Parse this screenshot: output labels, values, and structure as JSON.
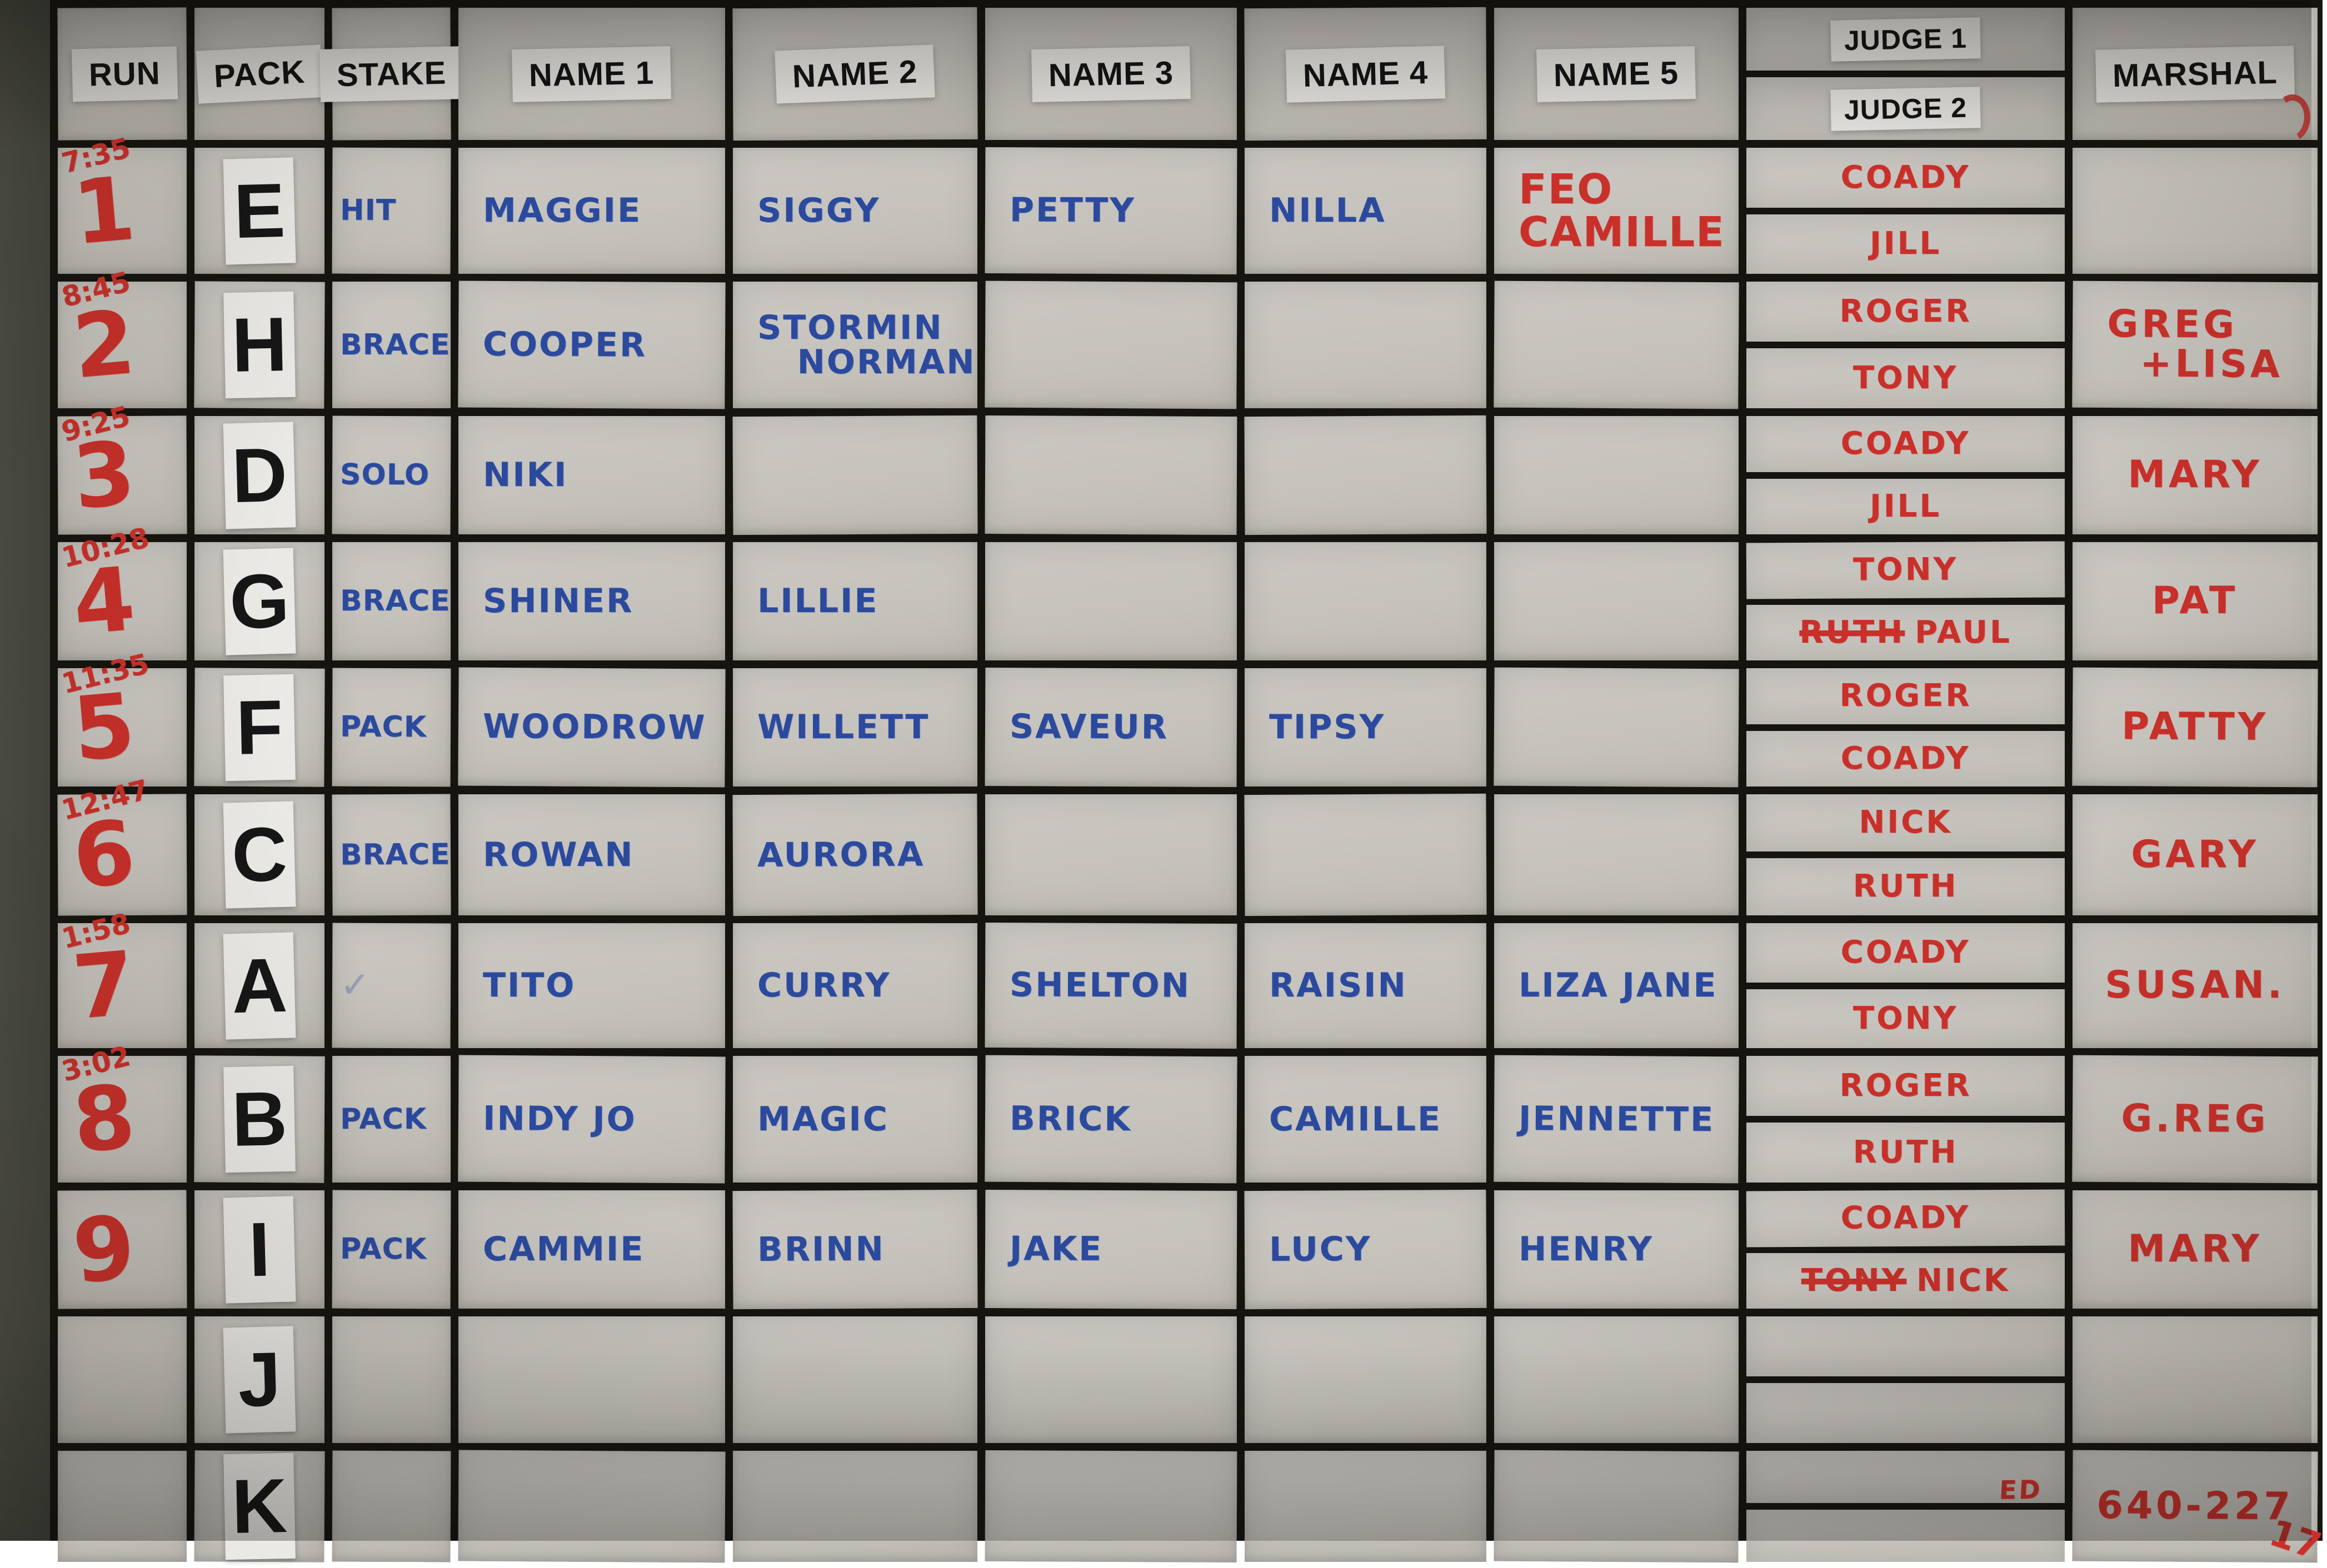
{
  "ink": {
    "blue": "#2b4a9e",
    "red": "#c9302a"
  },
  "header": {
    "run": "RUN",
    "pack": "PACK",
    "stake": "STAKE",
    "name1": "NAME 1",
    "name2": "NAME 2",
    "name3": "NAME 3",
    "name4": "NAME 4",
    "name5": "NAME 5",
    "judge1": "JUDGE 1",
    "judge2": "JUDGE 2",
    "marshal": "MARSHAL"
  },
  "rows": [
    {
      "time": "7:35",
      "run": "1",
      "pack": "E",
      "stake": {
        "text": "HIT"
      },
      "names": [
        {
          "text": "MAGGIE"
        },
        {
          "text": "SIGGY"
        },
        {
          "text": "PETTY"
        },
        {
          "text": "NILLA"
        },
        {
          "text": "FEO\nCAMILLE",
          "color": "red",
          "big": true
        }
      ],
      "judge1": {
        "text": "COADY"
      },
      "judge2": {
        "text": "JILL"
      },
      "marshal": {
        "text": ""
      }
    },
    {
      "time": "8:45",
      "run": "2",
      "pack": "H",
      "stake": {
        "text": "BRACE"
      },
      "names": [
        {
          "text": "COOPER"
        },
        {
          "text": "STORMIN\n   NORMAN"
        },
        {
          "text": ""
        },
        {
          "text": ""
        },
        {
          "text": ""
        }
      ],
      "judge1": {
        "text": "ROGER"
      },
      "judge2": {
        "text": "TONY"
      },
      "marshal": {
        "text": "GREG\n  +LISA"
      }
    },
    {
      "time": "9:25",
      "run": "3",
      "pack": "D",
      "stake": {
        "text": "SOLO"
      },
      "names": [
        {
          "text": "NIKI"
        },
        {
          "text": ""
        },
        {
          "text": ""
        },
        {
          "text": ""
        },
        {
          "text": ""
        }
      ],
      "judge1": {
        "text": "COADY"
      },
      "judge2": {
        "text": "JILL"
      },
      "marshal": {
        "text": "MARY"
      }
    },
    {
      "time": "10:28",
      "run": "4",
      "pack": "G",
      "stake": {
        "text": "BRACE"
      },
      "names": [
        {
          "text": "SHINER"
        },
        {
          "text": "LILLIE"
        },
        {
          "text": ""
        },
        {
          "text": ""
        },
        {
          "text": ""
        }
      ],
      "judge1": {
        "text": "TONY"
      },
      "judge2": {
        "struck_text": "RUTH",
        "text": "PAUL"
      },
      "marshal": {
        "text": "PAT"
      }
    },
    {
      "time": "11:35",
      "run": "5",
      "pack": "F",
      "stake": {
        "text": "PACK"
      },
      "names": [
        {
          "text": "WOODROW"
        },
        {
          "text": "WILLETT"
        },
        {
          "text": "SAVEUR"
        },
        {
          "text": "TIPSY"
        },
        {
          "text": ""
        }
      ],
      "judge1": {
        "text": "ROGER"
      },
      "judge2": {
        "text": "COADY"
      },
      "marshal": {
        "text": "PATTY"
      }
    },
    {
      "time": "12:47",
      "run": "6",
      "pack": "C",
      "stake": {
        "text": "BRACE"
      },
      "names": [
        {
          "text": "ROWAN"
        },
        {
          "text": "AURORA"
        },
        {
          "text": ""
        },
        {
          "text": ""
        },
        {
          "text": ""
        }
      ],
      "judge1": {
        "text": "NICK"
      },
      "judge2": {
        "text": "RUTH"
      },
      "marshal": {
        "text": "GARY"
      }
    },
    {
      "time": "1:58",
      "run": "7",
      "pack": "A",
      "stake": {
        "text": "✓",
        "faint": true
      },
      "names": [
        {
          "text": "TITO"
        },
        {
          "text": "CURRY"
        },
        {
          "text": "SHELTON"
        },
        {
          "text": "RAISIN"
        },
        {
          "text": "LIZA JANE"
        }
      ],
      "judge1": {
        "text": "COADY"
      },
      "judge2": {
        "text": "TONY"
      },
      "marshal": {
        "text": "SUSAN."
      }
    },
    {
      "time": "3:02",
      "run": "8",
      "pack": "B",
      "stake": {
        "text": "PACK"
      },
      "names": [
        {
          "text": "INDY JO"
        },
        {
          "text": "MAGIC"
        },
        {
          "text": "BRICK"
        },
        {
          "text": "CAMILLE"
        },
        {
          "text": "JENNETTE"
        }
      ],
      "judge1": {
        "text": "ROGER"
      },
      "judge2": {
        "text": "RUTH"
      },
      "marshal": {
        "text": "G.REG"
      }
    },
    {
      "time": "",
      "run": "9",
      "pack": "I",
      "stake": {
        "text": "PACK"
      },
      "names": [
        {
          "text": "CAMMIE"
        },
        {
          "text": "BRINN"
        },
        {
          "text": "JAKE"
        },
        {
          "text": "LUCY"
        },
        {
          "text": "HENRY"
        }
      ],
      "judge1": {
        "text": "COADY"
      },
      "judge2": {
        "struck_text": "TONY",
        "text": "NICK"
      },
      "marshal": {
        "text": "MARY"
      }
    },
    {
      "time": "",
      "run": "",
      "pack": "J",
      "stake": {
        "text": ""
      },
      "names": [
        {
          "text": ""
        },
        {
          "text": ""
        },
        {
          "text": ""
        },
        {
          "text": ""
        },
        {
          "text": ""
        }
      ],
      "judge1": {
        "text": ""
      },
      "judge2": {
        "text": ""
      },
      "marshal": {
        "text": ""
      }
    },
    {
      "time": "",
      "run": "",
      "pack": "K",
      "stake": {
        "text": ""
      },
      "names": [
        {
          "text": ""
        },
        {
          "text": ""
        },
        {
          "text": ""
        },
        {
          "text": ""
        },
        {
          "text": ""
        }
      ],
      "judge1": {
        "text": "ED",
        "small": true,
        "align": "right"
      },
      "judge2": {
        "text": ""
      },
      "marshal": {
        "text": "640-227",
        "extra": "17"
      }
    }
  ]
}
